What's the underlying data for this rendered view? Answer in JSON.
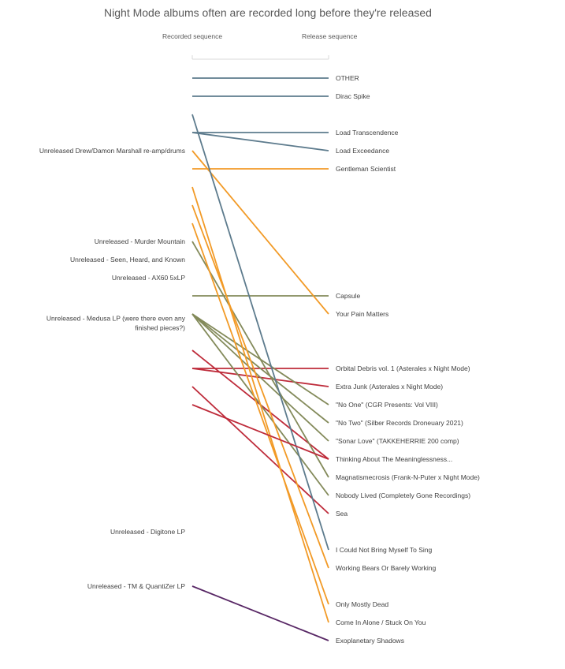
{
  "chart_data": {
    "type": "slope",
    "subtitle": "Night Mode albums often are recorded long before they're released",
    "left_axis_label": "Recorded sequence",
    "right_axis_label": "Release sequence",
    "colors": {
      "blue-gray": "#5d7b8d",
      "orange": "#f29a26",
      "olive": "#838a5a",
      "red": "#be2b3a",
      "purple": "#582765"
    },
    "left_labels": [
      {
        "text": "Unreleased Drew/Damon Marshall re-amp/drums",
        "rank": 5
      },
      {
        "text": "Unreleased - Murder Mountain",
        "rank": 10
      },
      {
        "text": "Unreleased - Seen, Heard, and Known",
        "rank": 11
      },
      {
        "text": "Unreleased - AX60 5xLP",
        "rank": 12
      },
      {
        "text": "Unreleased - Medusa LP (were there even any finished pieces?)",
        "rank": 14.5
      },
      {
        "text": "Unreleased - Digitone LP",
        "rank": 26
      },
      {
        "text": "Unreleased - TM & QuantiZer LP",
        "rank": 29
      }
    ],
    "series": [
      {
        "name": "OTHER",
        "recorded": 1,
        "released": 1,
        "color": "blue-gray"
      },
      {
        "name": "Dirac Spike",
        "recorded": 2,
        "released": 2,
        "color": "blue-gray"
      },
      {
        "name": "Load Transcendence",
        "recorded": 4,
        "released": 4,
        "color": "blue-gray"
      },
      {
        "name": "Load Exceedance",
        "recorded": 4,
        "released": 5,
        "color": "blue-gray"
      },
      {
        "name": "Gentleman Scientist",
        "recorded": 6,
        "released": 6,
        "color": "orange"
      },
      {
        "name": "Capsule",
        "recorded": 13,
        "released": 13,
        "color": "olive"
      },
      {
        "name": "Your Pain Matters",
        "recorded": 5,
        "released": 14,
        "color": "orange"
      },
      {
        "name": "Orbital Debris vol. 1 (Asterales x Night Mode)",
        "recorded": 17,
        "released": 17,
        "color": "red"
      },
      {
        "name": "Extra Junk (Asterales x Night Mode)",
        "recorded": 17,
        "released": 18,
        "color": "red"
      },
      {
        "name": "\"No One\" (CGR Presents: Vol VIII)",
        "recorded": 14,
        "released": 19,
        "color": "olive"
      },
      {
        "name": "\"No Two\" (Silber Records Droneuary 2021)",
        "recorded": 14,
        "released": 20,
        "color": "olive"
      },
      {
        "name": "\"Sonar Love\" (TAKKEHERRIE 200 comp)",
        "recorded": 14,
        "released": 21,
        "color": "olive"
      },
      {
        "name": "Thinking About The Meaninglessness...",
        "recorded": 16,
        "released": 22,
        "color": "red"
      },
      {
        "name": "Magnatismecrosis (Frank-N-Puter x Night Mode)",
        "recorded": 10,
        "released": 23,
        "color": "olive"
      },
      {
        "name": "Nobody Lived (Completely Gone Recordings)",
        "recorded": 14,
        "released": 24,
        "color": "olive"
      },
      {
        "name": "Sea",
        "recorded": 18,
        "released": 25,
        "color": "red"
      },
      {
        "name": "I Could Not Bring Myself To Sing",
        "recorded": 3,
        "released": 27,
        "color": "blue-gray"
      },
      {
        "name": "Working Bears Or Barely Working",
        "recorded": 8,
        "released": 28,
        "color": "orange"
      },
      {
        "name": "Only Mostly Dead",
        "recorded": 9,
        "released": 30,
        "color": "orange"
      },
      {
        "name": "Come In Alone / Stuck On You",
        "recorded": 7,
        "released": 31,
        "color": "orange"
      },
      {
        "name": "Exoplanetary Shadows",
        "recorded": 29,
        "released": 32,
        "color": "purple"
      },
      {
        "name": "",
        "recorded": 19,
        "released": 22,
        "color": "red"
      }
    ]
  }
}
